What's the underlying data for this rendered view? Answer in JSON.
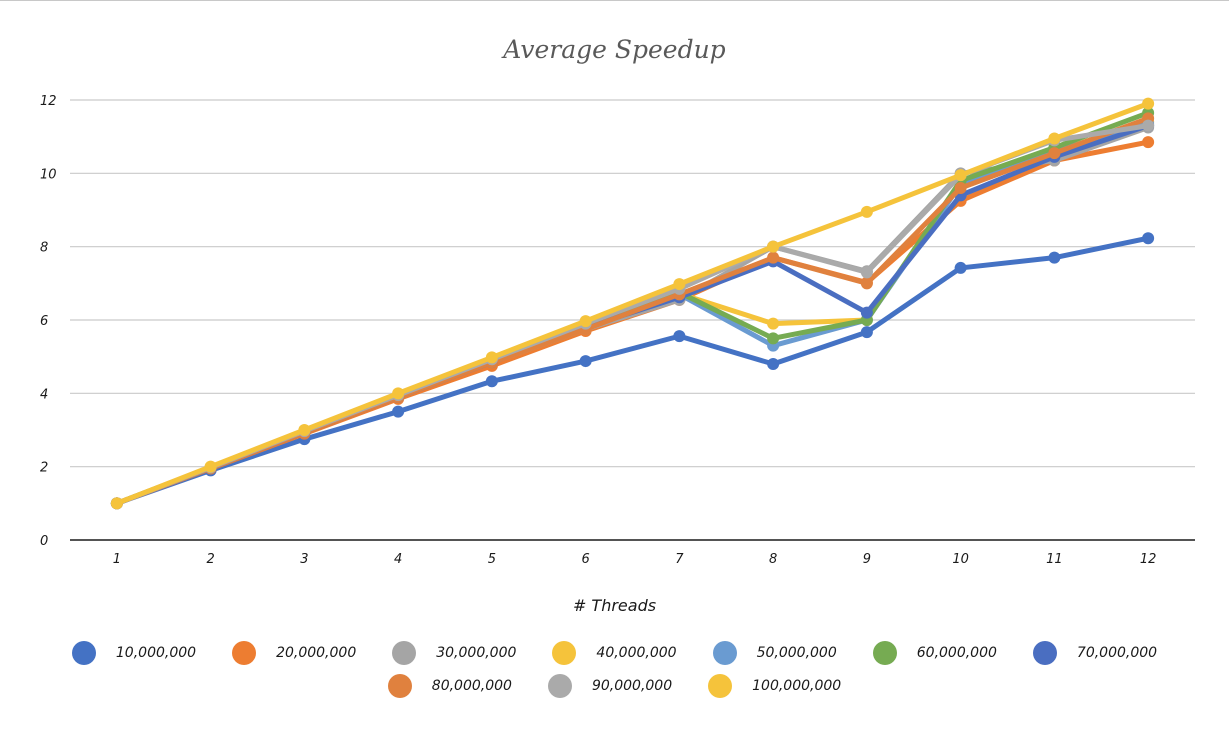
{
  "chart_data": {
    "type": "line",
    "title": "Average Speedup",
    "xlabel": "# Threads",
    "ylabel": "",
    "categories": [
      "1",
      "2",
      "3",
      "4",
      "5",
      "6",
      "7",
      "8",
      "9",
      "10",
      "11",
      "12"
    ],
    "ylim": [
      0,
      12
    ],
    "yticks": [
      "0",
      "2",
      "4",
      "6",
      "8",
      "10",
      "12"
    ],
    "grid": true,
    "legend_position": "bottom",
    "series": [
      {
        "name": "10,000,000",
        "color": "#4472C4",
        "values": [
          1,
          1.9,
          2.75,
          3.5,
          4.33,
          4.88,
          5.56,
          4.8,
          5.67,
          7.42,
          7.7,
          8.23
        ]
      },
      {
        "name": "20,000,000",
        "color": "#ED7D31",
        "values": [
          1,
          1.95,
          2.9,
          3.85,
          4.75,
          5.7,
          6.55,
          7.7,
          7.02,
          9.25,
          10.35,
          10.85
        ]
      },
      {
        "name": "30,000,000",
        "color": "#A5A5A5",
        "values": [
          1,
          1.97,
          2.95,
          3.9,
          4.85,
          5.75,
          6.55,
          8.0,
          7.33,
          10.0,
          10.35,
          11.25
        ]
      },
      {
        "name": "40,000,000",
        "color": "#FFC000",
        "values": [
          1,
          1.98,
          2.96,
          3.92,
          4.87,
          5.8,
          6.72,
          5.9,
          6.0,
          9.75,
          10.6,
          11.4
        ]
      },
      {
        "name": "50,000,000",
        "color": "#5B9BD5",
        "values": [
          1,
          1.97,
          2.95,
          3.9,
          4.85,
          5.8,
          6.7,
          5.3,
          6.0,
          9.7,
          10.6,
          11.35
        ]
      },
      {
        "name": "60,000,000",
        "color": "#70AD47",
        "values": [
          1,
          1.98,
          2.97,
          3.95,
          4.9,
          5.85,
          6.75,
          5.5,
          6.0,
          9.8,
          10.7,
          11.65
        ]
      },
      {
        "name": "70,000,000",
        "color": "#264478",
        "values": [
          1,
          1.97,
          2.93,
          3.9,
          4.85,
          5.8,
          6.62,
          7.6,
          6.2,
          9.4,
          10.45,
          11.3
        ]
      },
      {
        "name": "80,000,000",
        "color": "#9E480E",
        "values": [
          1,
          1.97,
          2.93,
          3.9,
          4.85,
          5.75,
          6.7,
          7.7,
          7.0,
          9.6,
          10.55,
          11.5
        ]
      },
      {
        "name": "90,000,000",
        "color": "#636363",
        "values": [
          1,
          1.98,
          2.97,
          3.95,
          4.93,
          5.9,
          6.85,
          8.0,
          7.3,
          9.95,
          10.9,
          11.3
        ]
      },
      {
        "name": "100,000,000",
        "color": "#997300",
        "values": [
          1,
          2.0,
          3.0,
          4.0,
          4.98,
          5.97,
          6.98,
          8.0,
          8.95,
          9.95,
          10.95,
          11.9
        ]
      }
    ]
  }
}
